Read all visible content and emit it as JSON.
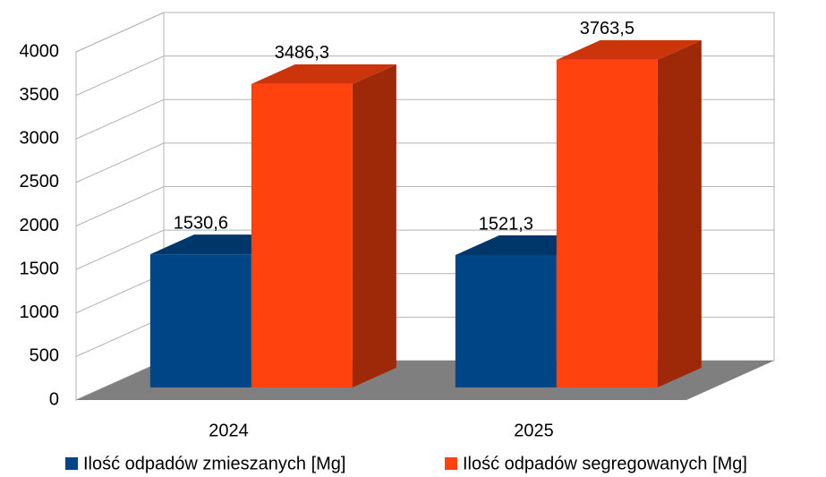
{
  "chart_data": {
    "type": "bar3d",
    "categories": [
      "2024",
      "2025"
    ],
    "series": [
      {
        "name": "Ilość odpadów zmieszanych [Mg]",
        "color": "#004586",
        "values": [
          1530.6,
          1521.3
        ],
        "value_labels": [
          "1530,6",
          "1521,3"
        ]
      },
      {
        "name": "Ilość odpadów segregowanych [Mg]",
        "color": "#ff420e",
        "values": [
          3486.3,
          3763.5
        ],
        "value_labels": [
          "3486,3",
          "3763,5"
        ]
      }
    ],
    "ylim": [
      0,
      4000
    ],
    "yticks": [
      0,
      500,
      1000,
      1500,
      2000,
      2500,
      3000,
      3500,
      4000
    ],
    "grid": true,
    "legend": "bottom"
  }
}
